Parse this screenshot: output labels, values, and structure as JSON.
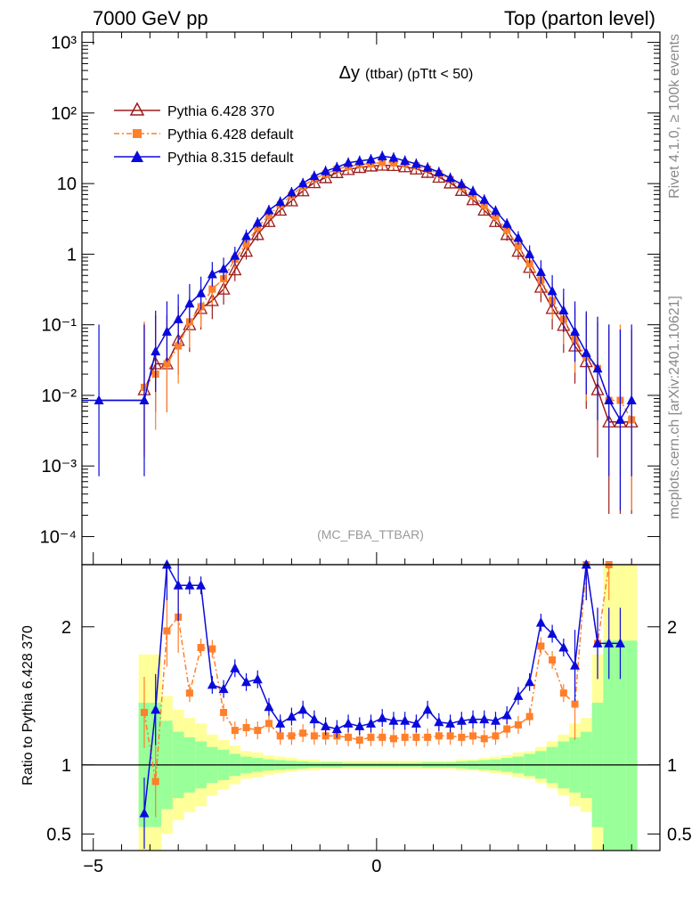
{
  "header": {
    "left": "7000 GeV pp",
    "right": "Top (parton level)"
  },
  "side_labels": {
    "rivet": "Rivet 4.1.0, ≥ 100k events",
    "mcplots": "mcplots.cern.ch [arXiv:2401.10621]"
  },
  "chart_data": {
    "type": "line",
    "title": "Δy",
    "title_detail": "(ttbar) (pTtt < 50)",
    "watermark": "(MC_FBA_TTBAR)",
    "x": [
      -4.9,
      -4.1,
      -3.9,
      -3.7,
      -3.5,
      -3.3,
      -3.1,
      -2.9,
      -2.7,
      -2.5,
      -2.3,
      -2.1,
      -1.9,
      -1.7,
      -1.5,
      -1.3,
      -1.1,
      -0.9,
      -0.7,
      -0.5,
      -0.3,
      -0.1,
      0.1,
      0.3,
      0.5,
      0.7,
      0.9,
      1.1,
      1.3,
      1.5,
      1.7,
      1.9,
      2.1,
      2.3,
      2.5,
      2.7,
      2.9,
      3.1,
      3.3,
      3.5,
      3.7,
      3.9,
      4.1,
      4.3,
      4.5
    ],
    "xlim": [
      -5.2,
      5.0
    ],
    "main": {
      "ylim": [
        4e-05,
        1400
      ],
      "y_ticks": [
        {
          "value": 0.0001,
          "label": "10⁻⁴"
        },
        {
          "value": 0.001,
          "label": "10⁻³"
        },
        {
          "value": 0.01,
          "label": "10⁻²"
        },
        {
          "value": 0.1,
          "label": "10⁻¹"
        },
        {
          "value": 1,
          "label": "1"
        },
        {
          "value": 10,
          "label": "10"
        },
        {
          "value": 100,
          "label": "10²"
        },
        {
          "value": 1000,
          "label": "10³"
        }
      ],
      "series": [
        {
          "name": "Pythia 6.428 370",
          "color": "#9b1b1b",
          "marker": "triangle-open",
          "values": [
            null,
            0.012,
            0.028,
            0.028,
            0.06,
            0.1,
            0.17,
            0.22,
            0.32,
            0.6,
            1.1,
            1.9,
            2.9,
            4.2,
            5.7,
            7.9,
            10.3,
            12.1,
            14.3,
            15.8,
            16.9,
            17.7,
            18.2,
            18.0,
            17.3,
            16.1,
            14.4,
            12.3,
            10.2,
            8.0,
            5.9,
            4.2,
            2.9,
            1.9,
            1.1,
            0.65,
            0.34,
            0.17,
            0.098,
            0.05,
            0.03,
            0.012,
            0.0042,
            0.0042,
            0.0042
          ]
        },
        {
          "name": "Pythia 6.428 default",
          "color": "#ff7f2a",
          "marker": "square",
          "values": [
            null,
            0.013,
            0.02,
            0.028,
            0.05,
            0.11,
            0.18,
            0.32,
            0.45,
            0.85,
            1.4,
            2.4,
            3.6,
            5.0,
            6.8,
            9.2,
            11.8,
            13.7,
            16.0,
            17.4,
            18.7,
            19.0,
            19.9,
            19.6,
            19.2,
            17.8,
            16.0,
            13.8,
            11.4,
            9.0,
            6.8,
            4.9,
            3.4,
            2.2,
            1.3,
            0.73,
            0.43,
            0.22,
            0.12,
            0.063,
            0.035,
            0.024,
            0.0085,
            0.0085,
            0.0045
          ]
        },
        {
          "name": "Pythia 8.315 default",
          "color": "#0a0adc",
          "marker": "triangle",
          "values": [
            0.0085,
            0.0085,
            0.042,
            0.08,
            0.12,
            0.2,
            0.28,
            0.52,
            0.62,
            0.95,
            1.8,
            2.8,
            4.2,
            5.5,
            7.5,
            10.1,
            12.8,
            15.0,
            17.0,
            19.7,
            20.9,
            22.0,
            24.4,
            23.2,
            21.0,
            19.0,
            16.8,
            14.5,
            12.0,
            9.8,
            7.8,
            5.9,
            4.1,
            2.7,
            1.7,
            1.0,
            0.56,
            0.3,
            0.16,
            0.08,
            0.04,
            0.024,
            0.0085,
            0.0045,
            0.0085
          ]
        }
      ]
    },
    "ratio": {
      "ylabel": "Ratio to Pythia 6.428 370",
      "ylim": [
        0.38,
        2.45
      ],
      "y_ticks": [
        {
          "value": 0.5,
          "label": "0.5"
        },
        {
          "value": 1,
          "label": "1"
        },
        {
          "value": 2,
          "label": "2"
        }
      ],
      "x_ticks": [
        {
          "value": -5,
          "label": "−5"
        },
        {
          "value": 0,
          "label": "0"
        }
      ],
      "band_edges": [
        -4.2,
        -4.0,
        -3.8,
        -3.6,
        -3.4,
        -3.2,
        -3.0,
        -2.8,
        -2.6,
        -2.4,
        -2.2,
        -2.0,
        -1.8,
        -1.6,
        -1.4,
        -1.2,
        -1.0,
        -0.8,
        -0.6,
        -0.4,
        -0.2,
        0.0,
        0.2,
        0.4,
        0.6,
        0.8,
        1.0,
        1.2,
        1.4,
        1.6,
        1.8,
        2.0,
        2.2,
        2.4,
        2.6,
        2.8,
        3.0,
        3.2,
        3.4,
        3.6,
        3.8,
        4.0,
        4.2,
        4.4,
        4.6
      ],
      "band_outer": [
        1.8,
        1.8,
        1.5,
        1.4,
        1.34,
        1.3,
        1.22,
        1.18,
        1.14,
        1.1,
        1.09,
        1.07,
        1.06,
        1.05,
        1.04,
        1.04,
        1.03,
        1.03,
        1.03,
        1.03,
        1.03,
        1.03,
        1.03,
        1.03,
        1.03,
        1.03,
        1.03,
        1.03,
        1.04,
        1.04,
        1.05,
        1.06,
        1.07,
        1.09,
        1.1,
        1.13,
        1.17,
        1.22,
        1.3,
        1.34,
        1.8,
        2.45,
        2.45,
        2.45
      ],
      "band_inner": [
        1.45,
        1.45,
        1.32,
        1.24,
        1.2,
        1.17,
        1.13,
        1.11,
        1.08,
        1.06,
        1.05,
        1.04,
        1.035,
        1.03,
        1.025,
        1.02,
        1.02,
        1.02,
        1.015,
        1.015,
        1.015,
        1.015,
        1.015,
        1.015,
        1.015,
        1.02,
        1.02,
        1.02,
        1.025,
        1.03,
        1.035,
        1.04,
        1.05,
        1.06,
        1.08,
        1.1,
        1.13,
        1.17,
        1.2,
        1.24,
        1.45,
        1.9,
        1.9,
        1.9
      ],
      "series": [
        {
          "name": "Pythia 6.428 default",
          "color": "#ff7f2a",
          "values": [
            null,
            1.38,
            0.88,
            1.97,
            2.07,
            1.52,
            1.85,
            1.84,
            1.38,
            1.25,
            1.27,
            1.25,
            1.3,
            1.21,
            1.21,
            1.23,
            1.21,
            1.21,
            1.21,
            1.2,
            1.18,
            1.2,
            1.2,
            1.19,
            1.2,
            1.2,
            1.2,
            1.21,
            1.21,
            1.2,
            1.21,
            1.19,
            1.21,
            1.26,
            1.29,
            1.35,
            1.86,
            1.76,
            1.52,
            1.44,
            2.45,
            1.88,
            2.45,
            null,
            null
          ]
        },
        {
          "name": "Pythia 8.315 default",
          "color": "#0a0adc",
          "values": [
            null,
            0.65,
            1.4,
            2.6,
            2.3,
            2.3,
            2.3,
            1.58,
            1.55,
            1.7,
            1.6,
            1.62,
            1.42,
            1.3,
            1.35,
            1.4,
            1.33,
            1.28,
            1.26,
            1.3,
            1.28,
            1.3,
            1.34,
            1.32,
            1.32,
            1.3,
            1.4,
            1.31,
            1.3,
            1.32,
            1.33,
            1.33,
            1.32,
            1.36,
            1.5,
            1.6,
            2.03,
            1.95,
            1.85,
            1.72,
            2.45,
            1.88,
            1.88,
            1.88,
            null
          ]
        }
      ]
    }
  }
}
